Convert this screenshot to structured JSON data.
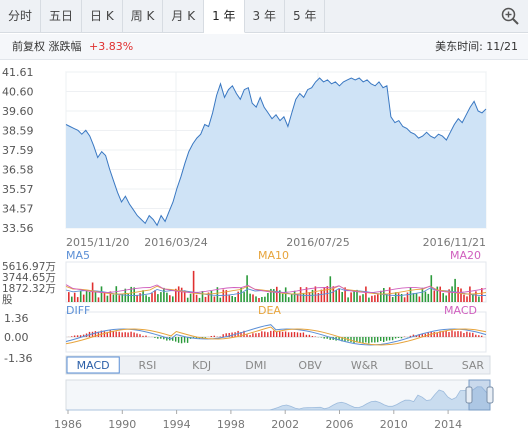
{
  "tabs": [
    {
      "label": "分时"
    },
    {
      "label": "五日"
    },
    {
      "label": "日 K"
    },
    {
      "label": "周 K"
    },
    {
      "label": "月 K"
    },
    {
      "label": "1 年",
      "active": true
    },
    {
      "label": "3 年"
    },
    {
      "label": "5 年"
    }
  ],
  "zoom_icon": "zoom-in-icon",
  "info": {
    "adjust_label": "前复权",
    "change_label": "涨跌幅",
    "change_value": "+3.83%",
    "time_label": "美东时间: 11/21"
  },
  "price_chart": {
    "y_ticks": [
      "41.61",
      "40.60",
      "39.60",
      "38.59",
      "37.59",
      "36.58",
      "35.57",
      "34.57",
      "33.56"
    ],
    "x_labels": [
      "2015/11/20",
      "2016/03/24",
      "2016/07/25",
      "2016/11/21"
    ],
    "price_series": [
      38.9,
      38.8,
      38.7,
      38.6,
      38.4,
      38.6,
      38.3,
      37.8,
      37.2,
      37.5,
      37.3,
      36.6,
      36.0,
      35.4,
      34.9,
      35.2,
      34.8,
      34.5,
      34.2,
      34.0,
      33.8,
      34.2,
      34.0,
      33.7,
      34.2,
      33.9,
      34.4,
      34.9,
      35.6,
      36.2,
      36.9,
      37.5,
      37.9,
      38.2,
      38.4,
      38.9,
      38.8,
      39.5,
      40.4,
      41.0,
      40.3,
      40.7,
      40.9,
      40.5,
      40.2,
      40.7,
      40.8,
      40.0,
      39.8,
      40.3,
      39.8,
      39.5,
      39.2,
      39.4,
      39.1,
      39.3,
      38.8,
      39.5,
      40.2,
      40.5,
      40.3,
      40.7,
      40.8,
      41.1,
      41.3,
      41.1,
      41.2,
      41.0,
      41.1,
      40.9,
      41.1,
      41.2,
      41.3,
      41.2,
      41.3,
      41.1,
      41.2,
      41.0,
      40.9,
      41.1,
      40.8,
      40.9,
      39.3,
      39.0,
      39.1,
      38.8,
      38.7,
      38.5,
      38.4,
      38.2,
      38.3,
      38.5,
      38.3,
      38.2,
      38.4,
      38.3,
      38.1,
      38.5,
      38.9,
      39.2,
      39.0,
      39.4,
      39.8,
      40.1,
      39.6,
      39.5,
      39.7
    ]
  },
  "volume_chart": {
    "y_ticks": [
      "5616.97万",
      "3744.65万",
      "1872.32万",
      "股"
    ],
    "legend": [
      "MA5",
      "MA10",
      "MA20"
    ],
    "legend_colors": [
      "#5b8fd6",
      "#e7a43c",
      "#d05fbe"
    ]
  },
  "macd_chart": {
    "y_ticks": [
      "1.36",
      "0.00",
      "-1.36"
    ],
    "legend": [
      "DIFF",
      "DEA",
      "MACD"
    ],
    "legend_colors": [
      "#5b8fd6",
      "#e7a43c",
      "#d05fbe"
    ]
  },
  "indicator_tabs": [
    {
      "label": "MACD",
      "active": true
    },
    {
      "label": "RSI"
    },
    {
      "label": "KDJ"
    },
    {
      "label": "DMI"
    },
    {
      "label": "OBV"
    },
    {
      "label": "W&R"
    },
    {
      "label": "BOLL"
    },
    {
      "label": "SAR"
    }
  ],
  "navigator": {
    "x_labels": [
      "1986",
      "1990",
      "1994",
      "1998",
      "2002",
      "2006",
      "2010",
      "2014"
    ]
  },
  "colors": {
    "up": "#e03030",
    "down": "#2a9a3a",
    "price_line": "#3a78c2",
    "price_fill": "#cfe3f6"
  }
}
